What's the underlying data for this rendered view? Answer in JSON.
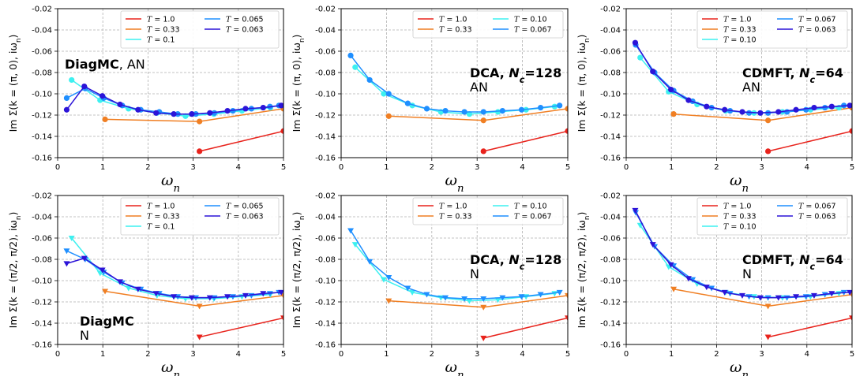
{
  "chart_data": [
    {
      "type": "line",
      "ylabel": "Im Σ(k = (π, 0), iω_n)",
      "xlabel": "ω_n",
      "xlim": [
        0,
        5
      ],
      "ylim": [
        -0.16,
        -0.02
      ],
      "xticks": [
        "0",
        "1",
        "2",
        "3",
        "4",
        "5"
      ],
      "yticks": [
        "-0.16",
        "-0.14",
        "-0.12",
        "-0.10",
        "-0.08",
        "-0.06",
        "-0.04",
        "-0.02"
      ],
      "grid": true,
      "legend": "top-right",
      "annotation": {
        "bold": "DiagMC",
        "rest": ", AN"
      },
      "series": [
        {
          "name": "T = 1.0",
          "color": "#e8231c",
          "x": [
            3.14,
            5.0
          ],
          "y": [
            -0.154,
            -0.135
          ]
        },
        {
          "name": "T = 0.33",
          "color": "#f07f23",
          "x": [
            1.05,
            3.14,
            5.0
          ],
          "y": [
            -0.124,
            -0.126,
            -0.114
          ]
        },
        {
          "name": "T = 0.1",
          "color": "#3df0f0",
          "x": [
            0.31,
            0.94,
            1.57,
            2.2,
            2.83,
            3.46,
            4.08,
            4.71
          ],
          "y": [
            -0.087,
            -0.106,
            -0.114,
            -0.118,
            -0.121,
            -0.119,
            -0.116,
            -0.113
          ]
        },
        {
          "name": "T = 0.065",
          "color": "#1f8fff",
          "x": [
            0.2,
            0.61,
            1.02,
            1.43,
            1.84,
            2.25,
            2.66,
            3.06,
            3.47,
            3.88,
            4.29,
            4.7,
            4.9
          ],
          "y": [
            -0.104,
            -0.095,
            -0.104,
            -0.111,
            -0.115,
            -0.117,
            -0.119,
            -0.119,
            -0.118,
            -0.116,
            -0.114,
            -0.112,
            -0.111
          ]
        },
        {
          "name": "T = 0.063",
          "color": "#2c14d8",
          "x": [
            0.2,
            0.59,
            0.99,
            1.38,
            1.78,
            2.18,
            2.57,
            2.97,
            3.37,
            3.76,
            4.16,
            4.55,
            4.95
          ],
          "y": [
            -0.115,
            -0.093,
            -0.102,
            -0.11,
            -0.115,
            -0.118,
            -0.119,
            -0.119,
            -0.118,
            -0.116,
            -0.114,
            -0.113,
            -0.111
          ]
        }
      ]
    },
    {
      "type": "line",
      "ylabel": "Im Σ(k = (π, 0), iω_n)",
      "xlabel": "ω_n",
      "xlim": [
        0,
        5
      ],
      "ylim": [
        -0.16,
        -0.02
      ],
      "xticks": [
        "0",
        "1",
        "2",
        "3",
        "4",
        "5"
      ],
      "yticks": [
        "-0.16",
        "-0.14",
        "-0.12",
        "-0.10",
        "-0.08",
        "-0.06",
        "-0.04",
        "-0.02"
      ],
      "grid": true,
      "legend": "top-right",
      "annotation": {
        "line1": "DCA, N_c=128",
        "line2": "AN"
      },
      "series": [
        {
          "name": "T = 1.0",
          "color": "#e8231c",
          "x": [
            3.14,
            5.0
          ],
          "y": [
            -0.154,
            -0.135
          ]
        },
        {
          "name": "T = 0.33",
          "color": "#f07f23",
          "x": [
            1.05,
            3.14,
            5.0
          ],
          "y": [
            -0.121,
            -0.125,
            -0.114
          ]
        },
        {
          "name": "T = 0.10",
          "color": "#3df0f0",
          "x": [
            0.31,
            0.94,
            1.57,
            2.2,
            2.83,
            3.46,
            4.08,
            4.71
          ],
          "y": [
            -0.075,
            -0.1,
            -0.111,
            -0.117,
            -0.119,
            -0.117,
            -0.115,
            -0.112
          ]
        },
        {
          "name": "T = 0.067",
          "color": "#1f8fff",
          "x": [
            0.21,
            0.63,
            1.05,
            1.47,
            1.89,
            2.3,
            2.72,
            3.14,
            3.56,
            3.98,
            4.4,
            4.82
          ],
          "y": [
            -0.064,
            -0.087,
            -0.1,
            -0.109,
            -0.114,
            -0.116,
            -0.117,
            -0.117,
            -0.116,
            -0.115,
            -0.113,
            -0.111
          ]
        }
      ]
    },
    {
      "type": "line",
      "ylabel": "Im Σ(k = (π, 0), iω_n)",
      "xlabel": "ω_n",
      "xlim": [
        0,
        5
      ],
      "ylim": [
        -0.16,
        -0.02
      ],
      "xticks": [
        "0",
        "1",
        "2",
        "3",
        "4",
        "5"
      ],
      "yticks": [
        "-0.16",
        "-0.14",
        "-0.12",
        "-0.10",
        "-0.08",
        "-0.06",
        "-0.04",
        "-0.02"
      ],
      "grid": true,
      "legend": "top-right",
      "annotation": {
        "line1": "CDMFT, N_c=64",
        "line2": "AN"
      },
      "series": [
        {
          "name": "T = 1.0",
          "color": "#e8231c",
          "x": [
            3.14,
            5.0
          ],
          "y": [
            -0.154,
            -0.135
          ]
        },
        {
          "name": "T = 0.33",
          "color": "#f07f23",
          "x": [
            1.05,
            3.14,
            5.0
          ],
          "y": [
            -0.119,
            -0.125,
            -0.113
          ]
        },
        {
          "name": "T = 0.10",
          "color": "#3df0f0",
          "x": [
            0.31,
            0.94,
            1.57,
            2.2,
            2.83,
            3.46,
            4.08,
            4.71
          ],
          "y": [
            -0.066,
            -0.098,
            -0.11,
            -0.116,
            -0.118,
            -0.117,
            -0.115,
            -0.113
          ]
        },
        {
          "name": "T = 0.067",
          "color": "#1f8fff",
          "x": [
            0.21,
            0.63,
            1.05,
            1.47,
            1.89,
            2.3,
            2.72,
            3.14,
            3.56,
            3.98,
            4.4,
            4.82
          ],
          "y": [
            -0.054,
            -0.08,
            -0.097,
            -0.107,
            -0.113,
            -0.116,
            -0.118,
            -0.118,
            -0.117,
            -0.115,
            -0.113,
            -0.111
          ]
        },
        {
          "name": "T = 0.063",
          "color": "#2c14d8",
          "x": [
            0.2,
            0.59,
            0.99,
            1.38,
            1.78,
            2.18,
            2.57,
            2.97,
            3.37,
            3.76,
            4.16,
            4.55,
            4.95
          ],
          "y": [
            -0.052,
            -0.079,
            -0.096,
            -0.106,
            -0.112,
            -0.115,
            -0.117,
            -0.118,
            -0.117,
            -0.115,
            -0.113,
            -0.112,
            -0.111
          ]
        }
      ]
    },
    {
      "type": "line",
      "ylabel": "Im Σ(k = (π/2, π/2), iω_n)",
      "xlabel": "ω_n",
      "xlim": [
        0,
        5
      ],
      "ylim": [
        -0.16,
        -0.02
      ],
      "xticks": [
        "0",
        "1",
        "2",
        "3",
        "4",
        "5"
      ],
      "yticks": [
        "-0.16",
        "-0.14",
        "-0.12",
        "-0.10",
        "-0.08",
        "-0.06",
        "-0.04",
        "-0.02"
      ],
      "grid": true,
      "legend": "top-right",
      "annotation": {
        "line1": "DiagMC",
        "line2": "N"
      },
      "series": [
        {
          "name": "T = 1.0",
          "color": "#e8231c",
          "x": [
            3.14,
            5.0
          ],
          "y": [
            -0.153,
            -0.135
          ]
        },
        {
          "name": "T = 0.33",
          "color": "#f07f23",
          "x": [
            1.05,
            3.14,
            5.0
          ],
          "y": [
            -0.11,
            -0.124,
            -0.114
          ]
        },
        {
          "name": "T = 0.1",
          "color": "#3df0f0",
          "x": [
            0.31,
            0.94,
            1.57,
            2.2,
            2.83,
            3.46,
            4.08,
            4.71
          ],
          "y": [
            -0.06,
            -0.093,
            -0.107,
            -0.114,
            -0.117,
            -0.117,
            -0.115,
            -0.113
          ]
        },
        {
          "name": "T = 0.065",
          "color": "#1f8fff",
          "x": [
            0.2,
            0.61,
            1.02,
            1.43,
            1.84,
            2.25,
            2.66,
            3.06,
            3.47,
            3.88,
            4.29,
            4.7,
            4.9
          ],
          "y": [
            -0.072,
            -0.08,
            -0.092,
            -0.102,
            -0.108,
            -0.112,
            -0.115,
            -0.116,
            -0.116,
            -0.115,
            -0.114,
            -0.112,
            -0.111
          ]
        },
        {
          "name": "T = 0.063",
          "color": "#2c14d8",
          "x": [
            0.2,
            0.59,
            0.99,
            1.38,
            1.78,
            2.18,
            2.57,
            2.97,
            3.37,
            3.76,
            4.16,
            4.55,
            4.95
          ],
          "y": [
            -0.084,
            -0.079,
            -0.09,
            -0.101,
            -0.108,
            -0.112,
            -0.115,
            -0.116,
            -0.116,
            -0.115,
            -0.114,
            -0.112,
            -0.111
          ]
        }
      ]
    },
    {
      "type": "line",
      "ylabel": "Im Σ(k = (π/2, π/2), iω_n)",
      "xlabel": "ω_n",
      "xlim": [
        0,
        5
      ],
      "ylim": [
        -0.16,
        -0.02
      ],
      "xticks": [
        "0",
        "1",
        "2",
        "3",
        "4",
        "5"
      ],
      "yticks": [
        "-0.16",
        "-0.14",
        "-0.12",
        "-0.10",
        "-0.08",
        "-0.06",
        "-0.04",
        "-0.02"
      ],
      "grid": true,
      "legend": "top-right",
      "annotation": {
        "line1": "DCA, N_c=128",
        "line2": "N"
      },
      "series": [
        {
          "name": "T = 1.0",
          "color": "#e8231c",
          "x": [
            3.14,
            5.0
          ],
          "y": [
            -0.154,
            -0.135
          ]
        },
        {
          "name": "T = 0.33",
          "color": "#f07f23",
          "x": [
            1.05,
            3.14,
            5.0
          ],
          "y": [
            -0.119,
            -0.125,
            -0.114
          ]
        },
        {
          "name": "T = 0.10",
          "color": "#3df0f0",
          "x": [
            0.31,
            0.94,
            1.57,
            2.2,
            2.83,
            3.46,
            4.08,
            4.71
          ],
          "y": [
            -0.066,
            -0.099,
            -0.111,
            -0.116,
            -0.119,
            -0.118,
            -0.115,
            -0.112
          ]
        },
        {
          "name": "T = 0.067",
          "color": "#1f8fff",
          "x": [
            0.21,
            0.63,
            1.05,
            1.47,
            1.89,
            2.3,
            2.72,
            3.14,
            3.56,
            3.98,
            4.4,
            4.82
          ],
          "y": [
            -0.053,
            -0.082,
            -0.097,
            -0.107,
            -0.113,
            -0.116,
            -0.117,
            -0.117,
            -0.116,
            -0.115,
            -0.113,
            -0.111
          ]
        }
      ]
    },
    {
      "type": "line",
      "ylabel": "Im Σ(k = (π/2, π/2), iω_n)",
      "xlabel": "ω_n",
      "xlim": [
        0,
        5
      ],
      "ylim": [
        -0.16,
        -0.02
      ],
      "xticks": [
        "0",
        "1",
        "2",
        "3",
        "4",
        "5"
      ],
      "yticks": [
        "-0.16",
        "-0.14",
        "-0.12",
        "-0.10",
        "-0.08",
        "-0.06",
        "-0.04",
        "-0.02"
      ],
      "grid": true,
      "legend": "top-right",
      "annotation": {
        "line1": "CDMFT, N_c=64",
        "line2": "N"
      },
      "series": [
        {
          "name": "T = 1.0",
          "color": "#e8231c",
          "x": [
            3.14,
            5.0
          ],
          "y": [
            -0.153,
            -0.135
          ]
        },
        {
          "name": "T = 0.33",
          "color": "#f07f23",
          "x": [
            1.05,
            3.14,
            5.0
          ],
          "y": [
            -0.108,
            -0.124,
            -0.113
          ]
        },
        {
          "name": "T = 0.10",
          "color": "#3df0f0",
          "x": [
            0.31,
            0.94,
            1.57,
            2.2,
            2.83,
            3.46,
            4.08,
            4.71
          ],
          "y": [
            -0.048,
            -0.087,
            -0.103,
            -0.111,
            -0.115,
            -0.116,
            -0.115,
            -0.112
          ]
        },
        {
          "name": "T = 0.067",
          "color": "#1f8fff",
          "x": [
            0.21,
            0.63,
            1.05,
            1.47,
            1.89,
            2.3,
            2.72,
            3.14,
            3.56,
            3.98,
            4.4,
            4.82
          ],
          "y": [
            -0.036,
            -0.068,
            -0.086,
            -0.099,
            -0.107,
            -0.112,
            -0.115,
            -0.116,
            -0.116,
            -0.115,
            -0.113,
            -0.111
          ]
        },
        {
          "name": "T = 0.063",
          "color": "#2c14d8",
          "x": [
            0.2,
            0.59,
            0.99,
            1.38,
            1.78,
            2.18,
            2.57,
            2.97,
            3.37,
            3.76,
            4.16,
            4.55,
            4.95
          ],
          "y": [
            -0.034,
            -0.066,
            -0.085,
            -0.098,
            -0.106,
            -0.111,
            -0.114,
            -0.116,
            -0.116,
            -0.115,
            -0.114,
            -0.112,
            -0.111
          ]
        }
      ]
    }
  ]
}
